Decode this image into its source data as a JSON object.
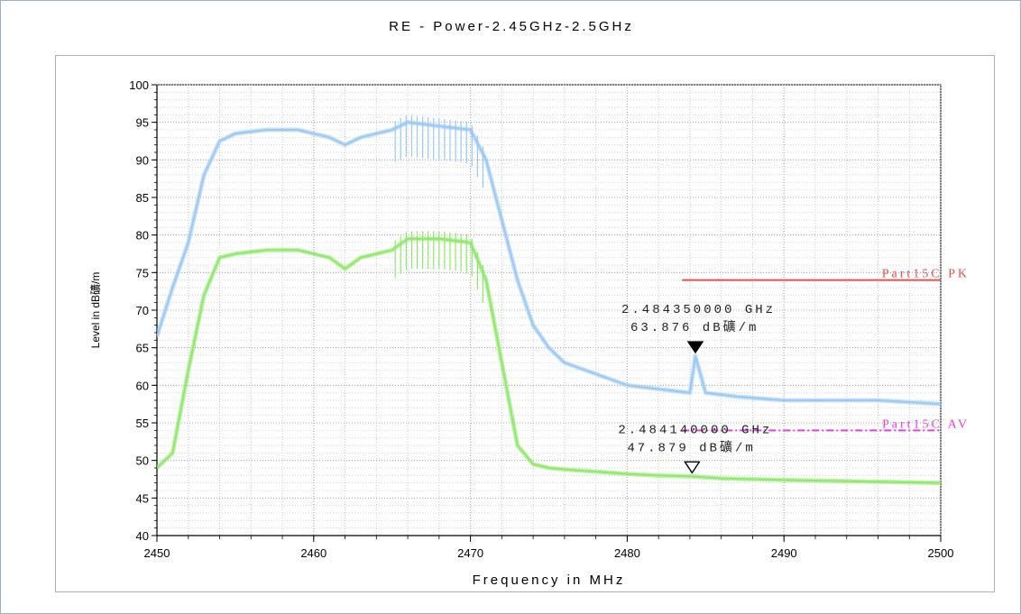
{
  "chart_data": {
    "type": "line",
    "title": "RE - Power-2.45GHz-2.5GHz",
    "xlabel": "Frequency in MHz",
    "ylabel": "Level in dB礦/m",
    "xlim": [
      2450,
      2500
    ],
    "ylim": [
      40,
      100
    ],
    "x_ticks": [
      2450,
      2460,
      2470,
      2480,
      2490,
      2500
    ],
    "y_ticks": [
      40,
      45,
      50,
      55,
      60,
      65,
      70,
      75,
      80,
      85,
      90,
      95,
      100
    ],
    "grid": true,
    "series": [
      {
        "color": "#9ac8f5",
        "x": [
          2450,
          2451,
          2452,
          2453,
          2454,
          2455,
          2457,
          2459,
          2460,
          2461,
          2462,
          2463,
          2464,
          2465,
          2466,
          2468,
          2470,
          2471,
          2472,
          2473,
          2474,
          2475,
          2476,
          2478,
          2480,
          2482,
          2484,
          2484.35,
          2485,
          2487,
          2490,
          2493,
          2496,
          2500
        ],
        "values": [
          66.5,
          73,
          79,
          88,
          92.5,
          93.5,
          94,
          94,
          93.5,
          93,
          92,
          93,
          93.5,
          94,
          95,
          94.5,
          94,
          90,
          82,
          74,
          68,
          65,
          63,
          61.5,
          60,
          59.5,
          59,
          63.876,
          59,
          58.5,
          58,
          58,
          58,
          57.5
        ]
      },
      {
        "color": "#8ee86a",
        "x": [
          2450,
          2451,
          2452,
          2453,
          2454,
          2455,
          2457,
          2459,
          2460,
          2461,
          2462,
          2463,
          2464,
          2465,
          2466,
          2468,
          2470,
          2471,
          2472,
          2473,
          2474,
          2475,
          2476,
          2478,
          2480,
          2482,
          2484.14,
          2486,
          2490,
          2495,
          2500
        ],
        "values": [
          49,
          51,
          62,
          72,
          77,
          77.5,
          78,
          78,
          77.5,
          77,
          75.5,
          77,
          77.5,
          78,
          79.5,
          79.5,
          79,
          74,
          63,
          52,
          49.5,
          49,
          48.8,
          48.5,
          48.2,
          48,
          47.879,
          47.6,
          47.4,
          47.2,
          47
        ]
      }
    ],
    "limit_lines": [
      {
        "label": "Part15C PK",
        "value": 74,
        "x_start": 2483.5,
        "x_end": 2500,
        "color": "#e05050",
        "style": "solid"
      },
      {
        "label": "Part15C AV",
        "value": 54,
        "x_start": 2483.5,
        "x_end": 2500,
        "color": "#e040e0",
        "style": "dashdot"
      }
    ],
    "markers": [
      {
        "freq_label": "2.484350000 GHz",
        "level_label": "63.876 dB礦/m",
        "x": 2484.35,
        "y": 63.876,
        "filled": true
      },
      {
        "freq_label": "2.484140000 GHz",
        "level_label": "47.879 dB礦/m",
        "x": 2484.14,
        "y": 47.879,
        "filled": false
      }
    ]
  }
}
